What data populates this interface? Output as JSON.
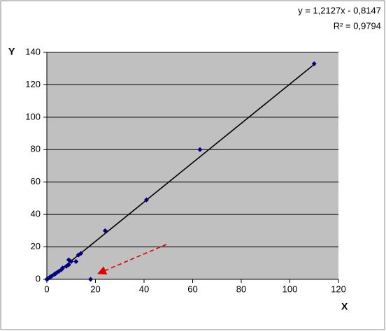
{
  "chart_data": {
    "type": "scatter",
    "x_label": "X",
    "y_label": "Y",
    "equation": "y = 1,2127x - 0,8147",
    "r_squared": "R² = 0,9794",
    "trendline": {
      "slope": 1.2127,
      "intercept": -0.8147,
      "color": "#000000"
    },
    "series": [
      {
        "color": "#000080",
        "x": [
          0,
          0.5,
          1,
          1.5,
          2,
          3,
          3.5,
          4,
          5,
          6,
          6.5,
          8,
          9,
          9,
          10,
          12,
          13,
          14,
          18,
          24,
          41,
          63,
          110
        ],
        "values": [
          0,
          0.5,
          1,
          1.5,
          2,
          3,
          3.5,
          4,
          5,
          6,
          7,
          8,
          9,
          12,
          11,
          11,
          15,
          16,
          0,
          30,
          49,
          80,
          133
        ]
      }
    ],
    "xlim": [
      0,
      120
    ],
    "xticks": [
      0,
      20,
      40,
      60,
      80,
      100,
      120
    ],
    "ylim": [
      0,
      140
    ],
    "yticks": [
      0,
      20,
      40,
      60,
      80,
      100,
      120,
      140
    ],
    "grid": true,
    "plot_background": "#c0c0c0"
  }
}
